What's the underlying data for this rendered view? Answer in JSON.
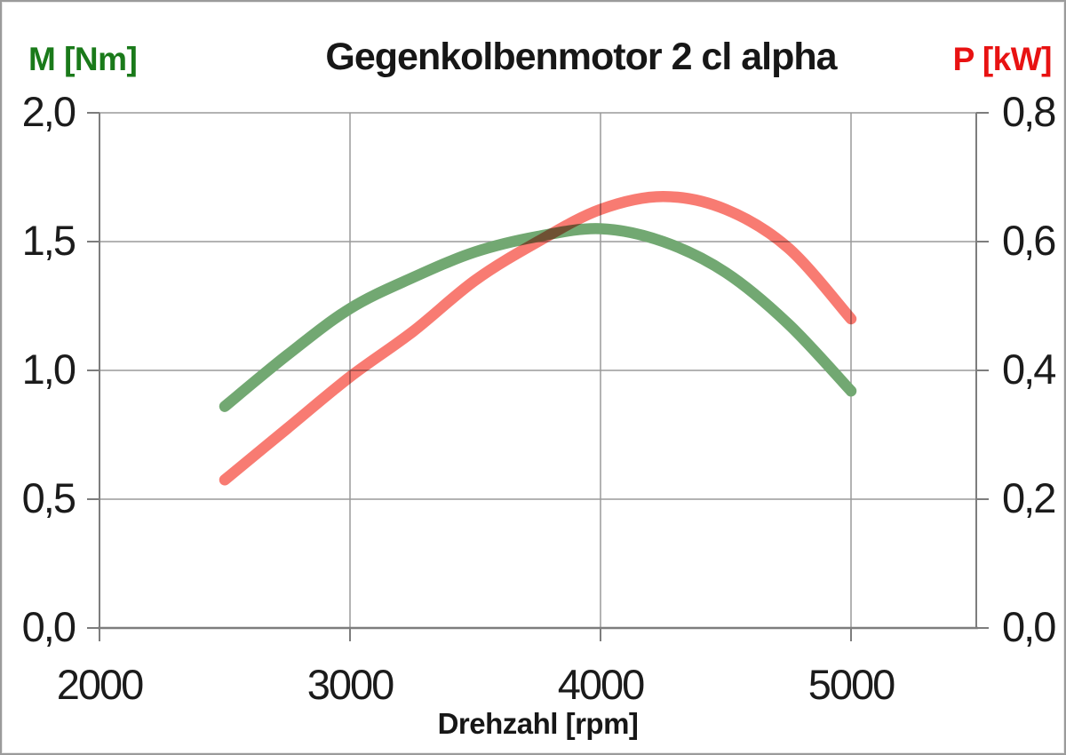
{
  "page": {
    "title": "Gegenkolbenmotor 2 cl alpha",
    "left_axis_unit": "M [Nm]",
    "right_axis_unit": "P [kW]",
    "x_axis_title": "Drehzahl [rpm]"
  },
  "colors": {
    "torque_curve": "#72a872",
    "power_curve": "#f87b72",
    "left_label": "#1a7a1a",
    "right_label": "#e81212",
    "gridline": "#9a9a9a",
    "axis_line": "#7d7d7d",
    "tick_text": "#1b1b1b"
  },
  "chart_data": {
    "type": "line",
    "title": "Gegenkolbenmotor 2 cl alpha",
    "xlabel": "Drehzahl [rpm]",
    "grid": true,
    "legend": "none (axis unit labels colored instead)",
    "x": [
      2500,
      2750,
      3000,
      3250,
      3500,
      3750,
      4000,
      4250,
      4500,
      4750,
      5000
    ],
    "series": [
      {
        "name": "M [Nm]",
        "axis": "left",
        "color": "#72a872",
        "style": "smooth, thick, round caps",
        "values": [
          0.86,
          1.06,
          1.24,
          1.36,
          1.46,
          1.52,
          1.55,
          1.5,
          1.38,
          1.18,
          0.92
        ]
      },
      {
        "name": "P [kW]",
        "axis": "right",
        "color": "#f87b72",
        "style": "smooth, thick, round caps",
        "values": [
          0.23,
          0.31,
          0.39,
          0.46,
          0.54,
          0.6,
          0.65,
          0.67,
          0.65,
          0.59,
          0.48
        ]
      }
    ],
    "x_axis": {
      "label": "Drehzahl [rpm]",
      "min": 2000,
      "max": 5500,
      "ticks": [
        2000,
        3000,
        4000,
        5000
      ],
      "tick_labels": [
        "2000",
        "3000",
        "4000",
        "5000"
      ]
    },
    "left_axis": {
      "label": "M [Nm]",
      "color": "#1a7a1a",
      "min": 0,
      "max": 2,
      "ticks": [
        0,
        0.5,
        1,
        1.5,
        2
      ],
      "tick_labels": [
        "0,0",
        "0,5",
        "1,0",
        "1,5",
        "2,0"
      ]
    },
    "right_axis": {
      "label": "P [kW]",
      "color": "#e81212",
      "min": 0,
      "max": 0.8,
      "ticks": [
        0,
        0.2,
        0.4,
        0.6,
        0.8
      ],
      "tick_labels": [
        "0,0",
        "0,2",
        "0,4",
        "0,6",
        "0,8"
      ]
    }
  }
}
